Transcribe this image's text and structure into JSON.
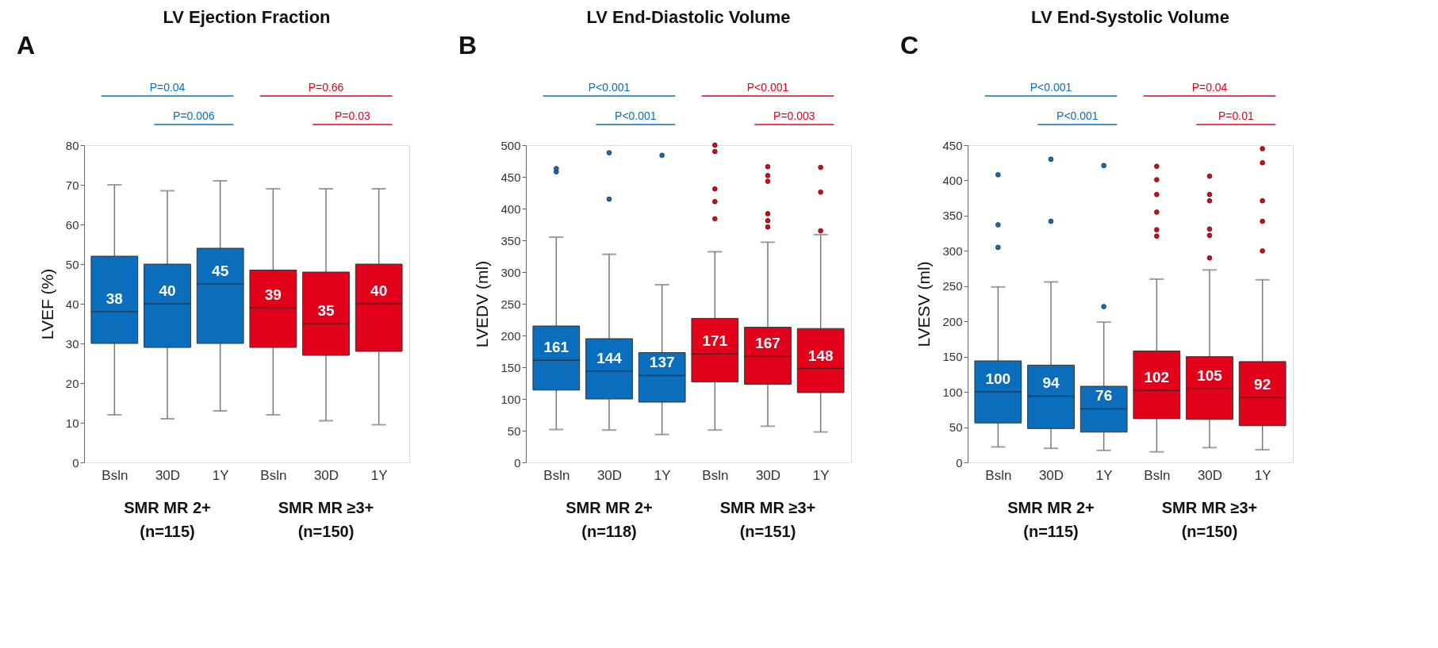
{
  "chart_data": [
    {
      "type": "box",
      "title": "LV Ejection Fraction",
      "ylabel": "LVEF (%)",
      "categories": [
        "Bsln",
        "30D",
        "1Y",
        "Bsln",
        "30D",
        "1Y"
      ],
      "ylim": [
        0,
        80
      ],
      "yticks": [
        0,
        10,
        20,
        30,
        40,
        50,
        60,
        70,
        80
      ],
      "value_labels": [
        "38",
        "40",
        "45",
        "39",
        "35",
        "40"
      ],
      "annotations": [
        "A",
        "SMR MR 2+ (n=115)",
        "P=0.04",
        "P=0.006",
        "SMR MR ≥3+ (n=150)",
        "P=0.66",
        "P=0.03"
      ],
      "colors": [
        "#0a6ebd",
        "#0a6ebd",
        "#0a6ebd",
        "#e2001a",
        "#e2001a",
        "#e2001a"
      ],
      "boxes": [
        {
          "low": 12,
          "q1": 30,
          "median": 38,
          "q3": 52,
          "high": 70
        },
        {
          "low": 11,
          "q1": 29,
          "median": 40,
          "q3": 50,
          "high": 68.5
        },
        {
          "low": 13,
          "q1": 30,
          "median": 45,
          "q3": 54,
          "high": 71
        },
        {
          "low": 12,
          "q1": 29,
          "median": 39,
          "q3": 48.5,
          "high": 69
        },
        {
          "low": 10.5,
          "q1": 27,
          "median": 35,
          "q3": 48,
          "high": 69
        },
        {
          "low": 9.5,
          "q1": 28,
          "median": 40,
          "q3": 50,
          "high": 69
        }
      ]
    },
    {
      "type": "box",
      "title": "LV End-Diastolic Volume",
      "ylabel": "LVEDV (ml)",
      "categories": [
        "Bsln",
        "30D",
        "1Y",
        "Bsln",
        "30D",
        "1Y"
      ],
      "ylim": [
        0,
        500
      ],
      "yticks": [
        0,
        50,
        100,
        150,
        200,
        250,
        300,
        350,
        400,
        450,
        500
      ],
      "value_labels": [
        "161",
        "144",
        "137",
        "171",
        "167",
        "148"
      ],
      "annotations": [
        "B",
        "SMR MR 2+ (n=118)",
        "P<0.001",
        "P<0.001",
        "SMR MR ≥3+ (n=151)",
        "P<0.001",
        "P=0.003"
      ],
      "colors": [
        "#0a6ebd",
        "#0a6ebd",
        "#0a6ebd",
        "#e2001a",
        "#e2001a",
        "#e2001a"
      ],
      "boxes": [
        {
          "low": 52,
          "q1": 114,
          "median": 161,
          "q3": 215,
          "high": 355,
          "outliers": [
            458,
            463
          ]
        },
        {
          "low": 51,
          "q1": 100,
          "median": 144,
          "q3": 195,
          "high": 328,
          "outliers": [
            415,
            488
          ]
        },
        {
          "low": 44,
          "q1": 95,
          "median": 137,
          "q3": 173,
          "high": 280,
          "outliers": [
            484
          ]
        },
        {
          "low": 51,
          "q1": 127,
          "median": 171,
          "q3": 227,
          "high": 332,
          "outliers": [
            384,
            411,
            431,
            490,
            500
          ]
        },
        {
          "low": 57,
          "q1": 123,
          "median": 167,
          "q3": 213,
          "high": 347,
          "outliers": [
            371,
            381,
            392,
            443,
            452,
            466
          ]
        },
        {
          "low": 48,
          "q1": 110,
          "median": 148,
          "q3": 211,
          "high": 359,
          "outliers": [
            365,
            426,
            465
          ]
        }
      ]
    },
    {
      "type": "box",
      "title": "LV End-Systolic Volume",
      "ylabel": "LVESV (ml)",
      "categories": [
        "Bsln",
        "30D",
        "1Y",
        "Bsln",
        "30D",
        "1Y"
      ],
      "ylim": [
        0,
        450
      ],
      "yticks": [
        0,
        50,
        100,
        150,
        200,
        250,
        300,
        350,
        400,
        450
      ],
      "value_labels": [
        "100",
        "94",
        "76",
        "102",
        "105",
        "92"
      ],
      "annotations": [
        "C",
        "SMR MR 2+ (n=115)",
        "P<0.001",
        "P<0.001",
        "SMR MR ≥3+ (n=150)",
        "P=0.04",
        "P=0.01"
      ],
      "colors": [
        "#0a6ebd",
        "#0a6ebd",
        "#0a6ebd",
        "#e2001a",
        "#e2001a",
        "#e2001a"
      ],
      "boxes": [
        {
          "low": 22,
          "q1": 56,
          "median": 100,
          "q3": 144,
          "high": 249,
          "outliers": [
            305,
            337,
            408
          ]
        },
        {
          "low": 20,
          "q1": 48,
          "median": 94,
          "q3": 138,
          "high": 256,
          "outliers": [
            342,
            430
          ]
        },
        {
          "low": 17,
          "q1": 43,
          "median": 76,
          "q3": 108,
          "high": 199,
          "outliers": [
            221,
            421
          ]
        },
        {
          "low": 15,
          "q1": 62,
          "median": 102,
          "q3": 158,
          "high": 260,
          "outliers": [
            321,
            330,
            355,
            380,
            401,
            420
          ]
        },
        {
          "low": 21,
          "q1": 61,
          "median": 105,
          "q3": 150,
          "high": 273,
          "outliers": [
            290,
            322,
            331,
            371,
            380,
            406
          ]
        },
        {
          "low": 18,
          "q1": 52,
          "median": 92,
          "q3": 143,
          "high": 259,
          "outliers": [
            300,
            342,
            371,
            425,
            445
          ]
        }
      ]
    }
  ]
}
